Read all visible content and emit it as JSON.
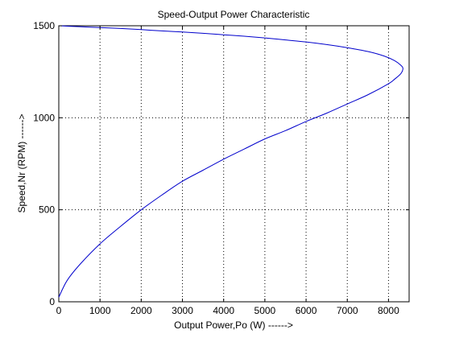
{
  "chart_data": {
    "type": "line",
    "title": "Speed-Output Power Characteristic",
    "xlabel": "Output Power,Po (W) ------>",
    "ylabel": "Speed,Nr (RPM) ------>",
    "xlim": [
      0,
      8500
    ],
    "ylim": [
      0,
      1500
    ],
    "xticks": [
      0,
      1000,
      2000,
      3000,
      4000,
      5000,
      6000,
      7000,
      8000
    ],
    "yticks": [
      0,
      500,
      1000,
      1500
    ],
    "xtick_labels": [
      "0",
      "1000",
      "2000",
      "3000",
      "4000",
      "5000",
      "6000",
      "7000",
      "8000"
    ],
    "ytick_labels": [
      "0",
      "500",
      "1000",
      "1500"
    ],
    "grid": true,
    "grid_style": "dotted",
    "line_color": "#0000cc",
    "series": [
      {
        "points": [
          [
            0,
            1500
          ],
          [
            500,
            1495
          ],
          [
            1000,
            1490
          ],
          [
            1500,
            1485
          ],
          [
            2000,
            1479
          ],
          [
            2500,
            1472
          ],
          [
            3000,
            1466
          ],
          [
            3500,
            1459
          ],
          [
            4000,
            1451
          ],
          [
            4500,
            1443
          ],
          [
            5000,
            1434
          ],
          [
            5500,
            1423
          ],
          [
            6000,
            1412
          ],
          [
            6500,
            1398
          ],
          [
            7000,
            1381
          ],
          [
            7500,
            1360
          ],
          [
            7900,
            1335
          ],
          [
            8150,
            1310
          ],
          [
            8300,
            1285
          ],
          [
            8350,
            1268
          ],
          [
            8300,
            1240
          ],
          [
            8150,
            1210
          ],
          [
            8000,
            1185
          ],
          [
            7500,
            1125
          ],
          [
            7000,
            1075
          ],
          [
            6500,
            1025
          ],
          [
            6000,
            980
          ],
          [
            5500,
            930
          ],
          [
            5000,
            885
          ],
          [
            4500,
            830
          ],
          [
            4000,
            775
          ],
          [
            3500,
            715
          ],
          [
            3000,
            655
          ],
          [
            2500,
            580
          ],
          [
            2000,
            500
          ],
          [
            1500,
            410
          ],
          [
            1000,
            315
          ],
          [
            500,
            200
          ],
          [
            200,
            115
          ],
          [
            0,
            25
          ]
        ]
      }
    ]
  }
}
